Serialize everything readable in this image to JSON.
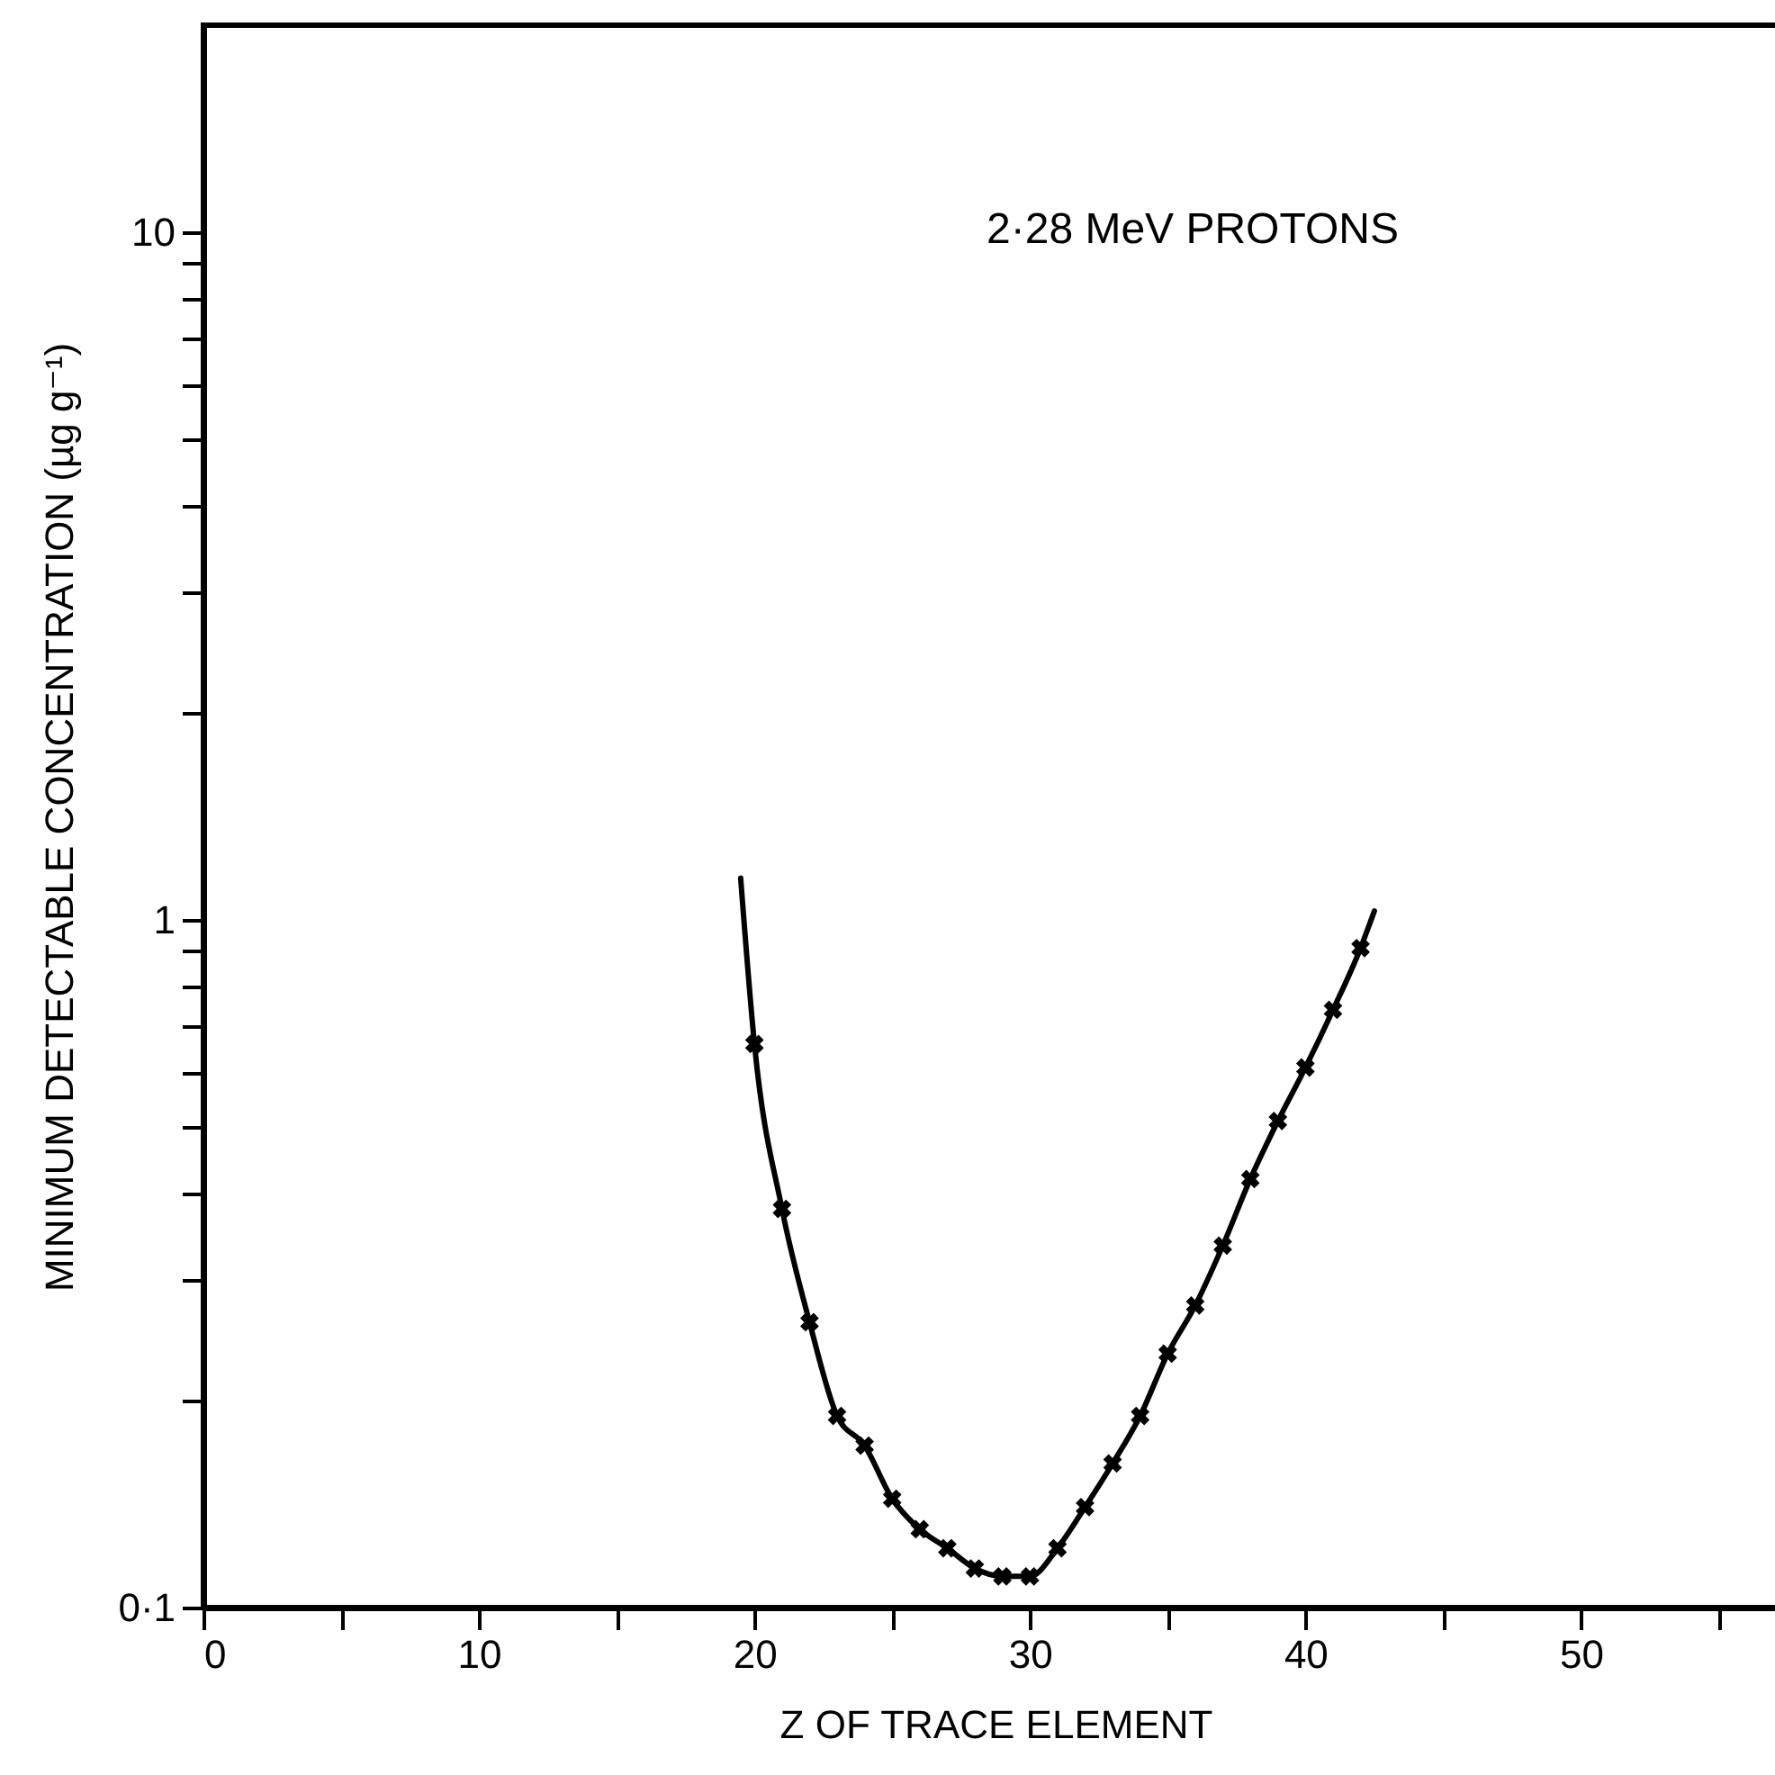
{
  "chart_data": {
    "type": "line",
    "xlabel": "Z  OF  TRACE  ELEMENT",
    "ylabel": "MINIMUM   DETECTABLE   CONCENTRATION   (µg g⁻¹)",
    "annotations": [
      "2·28 MeV PROTONS"
    ],
    "log": "y",
    "xlim": [
      0,
      57.5
    ],
    "ylim": [
      0.1,
      20
    ],
    "xticks": [
      0,
      {
        "value": 5,
        "label": null
      },
      10,
      {
        "value": 15,
        "label": null
      },
      20,
      {
        "value": 25,
        "label": null
      },
      30,
      {
        "value": 35,
        "label": null
      },
      40,
      {
        "value": 45,
        "label": null
      },
      50,
      {
        "value": 55,
        "label": null
      }
    ],
    "yticks": [
      {
        "value": 0.1,
        "label": "0·1"
      },
      {
        "value": 0.2,
        "label": null
      },
      {
        "value": 0.3,
        "label": null
      },
      {
        "value": 0.4,
        "label": null
      },
      {
        "value": 0.5,
        "label": null
      },
      {
        "value": 0.6,
        "label": null
      },
      {
        "value": 0.7,
        "label": null
      },
      {
        "value": 0.8,
        "label": null
      },
      {
        "value": 0.9,
        "label": null
      },
      1,
      {
        "value": 2,
        "label": null
      },
      {
        "value": 3,
        "label": null
      },
      {
        "value": 4,
        "label": null
      },
      {
        "value": 5,
        "label": null
      },
      {
        "value": 6,
        "label": null
      },
      {
        "value": 7,
        "label": null
      },
      {
        "value": 8,
        "label": null
      },
      {
        "value": 9,
        "label": null
      },
      10
    ],
    "grid": false,
    "series": [
      {
        "type": "line",
        "color": "#000000",
        "x": [
          19.5,
          20,
          21,
          22,
          23,
          24,
          25,
          26,
          27,
          28,
          29,
          30,
          31,
          32,
          33,
          34,
          35,
          36,
          37,
          38,
          39,
          40,
          41,
          42,
          42.5
        ],
        "values": [
          1.15,
          0.66,
          0.38,
          0.26,
          0.19,
          0.172,
          0.144,
          0.13,
          0.122,
          0.114,
          0.111,
          0.111,
          0.122,
          0.14,
          0.162,
          0.19,
          0.234,
          0.275,
          0.336,
          0.42,
          0.51,
          0.61,
          0.74,
          0.91,
          1.03
        ]
      },
      {
        "type": "scatter",
        "color": "#000000",
        "marker": "cross",
        "x": [
          20,
          21,
          22,
          23,
          24,
          25,
          26,
          27,
          28,
          29,
          30,
          31,
          32,
          33,
          34,
          35,
          36,
          37,
          38,
          39,
          40,
          41,
          42
        ],
        "values": [
          0.66,
          0.38,
          0.26,
          0.19,
          0.172,
          0.144,
          0.13,
          0.122,
          0.114,
          0.111,
          0.111,
          0.122,
          0.14,
          0.162,
          0.19,
          0.234,
          0.275,
          0.336,
          0.42,
          0.51,
          0.61,
          0.74,
          0.91
        ]
      }
    ]
  }
}
